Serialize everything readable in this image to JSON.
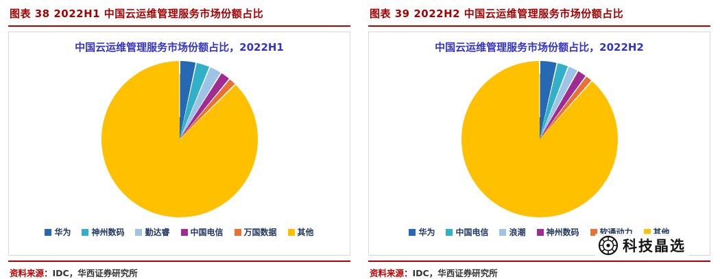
{
  "panels": [
    {
      "header": "图表 38  2022H1 中国云运维管理服务市场份额占比",
      "title": "中国云运维管理服务市场份额占比，2022H1",
      "source_label": "资料来源：",
      "source_rest": "IDC，华西证券研究所"
    },
    {
      "header": "图表 39  2022H2 中国云运维管理服务市场份额占比",
      "title": "中国云运维管理服务市场份额占比，2022H2",
      "source_label": "资料来源：",
      "source_rest": "IDC，华西证券研究所"
    }
  ],
  "chart_data": [
    {
      "type": "pie",
      "title": "中国云运维管理服务市场份额占比，2022H1",
      "labels": [
        "华为",
        "神州数码",
        "勤达睿",
        "中国电信",
        "万国数据",
        "其他"
      ],
      "values": [
        3.4,
        2.9,
        2.6,
        2.1,
        1.6,
        87.4
      ],
      "colors": [
        "#2569B3",
        "#31B0C8",
        "#9DC3E6",
        "#A02B93",
        "#E97132",
        "#FFC000"
      ],
      "legend_position": "bottom",
      "start_angle_deg": 0,
      "unit": "percent"
    },
    {
      "type": "pie",
      "title": "中国云运维管理服务市场份额占比，2022H2",
      "labels": [
        "华为",
        "中国电信",
        "浪潮",
        "神州数码",
        "软通动力",
        "其他"
      ],
      "values": [
        3.6,
        2.4,
        2.1,
        2.0,
        1.5,
        88.4
      ],
      "colors": [
        "#2569B3",
        "#31B0C8",
        "#9DC3E6",
        "#A02B93",
        "#E97132",
        "#FFC000"
      ],
      "legend_position": "bottom",
      "start_angle_deg": 0,
      "unit": "percent"
    }
  ],
  "watermark": {
    "text": "科技晶选",
    "logo": "tech-emblem-icon"
  },
  "colors": {
    "header_red": "#A60000",
    "rule_red": "#B00000",
    "title_blue": "#3333CC",
    "legend_text": "#1F3864",
    "source_label_red": "#C00000"
  }
}
